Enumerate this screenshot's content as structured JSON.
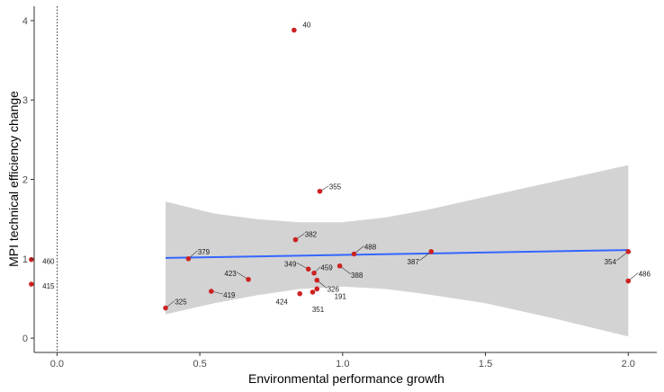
{
  "chart_data": {
    "type": "scatter",
    "xlabel": "Environmental performance growth",
    "ylabel": "MPI technical efficiency change",
    "xlim": [
      -0.08,
      2.1
    ],
    "ylim": [
      -0.18,
      4.18
    ],
    "x_ticks": [
      0.0,
      0.5,
      1.0,
      1.5,
      2.0
    ],
    "x_tick_labels": [
      "0.0",
      "0.5",
      "1.0",
      "1.5",
      "2.0"
    ],
    "y_ticks": [
      0,
      1,
      2,
      3,
      4
    ],
    "y_tick_labels": [
      "0",
      "1",
      "2",
      "3",
      "4"
    ],
    "vline_x": 0.0,
    "grid": false,
    "colors": {
      "points": "#cc2222",
      "trend": "#3366ff",
      "ribbon": "#d3d3d3",
      "axis": "#333333"
    },
    "points": [
      {
        "label": "40",
        "x": 0.83,
        "y": 3.88
      },
      {
        "label": "355",
        "x": 0.92,
        "y": 1.85
      },
      {
        "label": "382",
        "x": 0.835,
        "y": 1.24
      },
      {
        "label": "460",
        "x": -0.09,
        "y": 0.99
      },
      {
        "label": "379",
        "x": 0.46,
        "y": 1.0
      },
      {
        "label": "488",
        "x": 1.04,
        "y": 1.06
      },
      {
        "label": "387",
        "x": 1.31,
        "y": 1.09
      },
      {
        "label": "354",
        "x": 2.0,
        "y": 1.09
      },
      {
        "label": "486",
        "x": 2.0,
        "y": 0.72
      },
      {
        "label": "415",
        "x": -0.09,
        "y": 0.68
      },
      {
        "label": "349",
        "x": 0.88,
        "y": 0.87
      },
      {
        "label": "459",
        "x": 0.9,
        "y": 0.82
      },
      {
        "label": "388",
        "x": 0.99,
        "y": 0.91
      },
      {
        "label": "326",
        "x": 0.91,
        "y": 0.73
      },
      {
        "label": "423",
        "x": 0.67,
        "y": 0.74
      },
      {
        "label": "419",
        "x": 0.54,
        "y": 0.59
      },
      {
        "label": "191",
        "x": 0.91,
        "y": 0.62
      },
      {
        "label": "424",
        "x": 0.85,
        "y": 0.56
      },
      {
        "label": "351",
        "x": 0.895,
        "y": 0.58
      },
      {
        "label": "325",
        "x": 0.38,
        "y": 0.38
      }
    ],
    "trend_line": [
      {
        "x": 0.38,
        "y": 1.01
      },
      {
        "x": 2.0,
        "y": 1.11
      }
    ],
    "confidence_band": [
      {
        "x": 0.38,
        "lower": 0.3,
        "upper": 1.72
      },
      {
        "x": 0.55,
        "lower": 0.44,
        "upper": 1.57
      },
      {
        "x": 0.7,
        "lower": 0.54,
        "upper": 1.5
      },
      {
        "x": 0.85,
        "lower": 0.62,
        "upper": 1.46
      },
      {
        "x": 1.0,
        "lower": 0.65,
        "upper": 1.46
      },
      {
        "x": 1.15,
        "lower": 0.62,
        "upper": 1.52
      },
      {
        "x": 1.3,
        "lower": 0.55,
        "upper": 1.62
      },
      {
        "x": 1.5,
        "lower": 0.44,
        "upper": 1.78
      },
      {
        "x": 1.75,
        "lower": 0.24,
        "upper": 1.98
      },
      {
        "x": 2.0,
        "lower": 0.02,
        "upper": 2.18
      }
    ]
  }
}
